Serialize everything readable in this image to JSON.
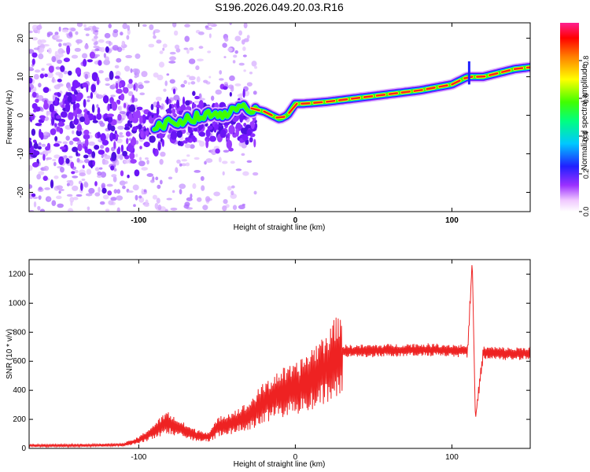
{
  "title": "S196.2026.049.20.03.R16",
  "chart_data": [
    {
      "type": "heatmap",
      "xlabel": "Height of straight line (km)",
      "ylabel": "Frequency (Hz)",
      "xlim": [
        -170,
        150
      ],
      "ylim": [
        -25,
        24
      ],
      "x_ticks": [
        -100,
        0,
        100
      ],
      "y_ticks": [
        -20,
        -10,
        0,
        10,
        20
      ],
      "ridge": {
        "x": [
          -90,
          -70,
          -55,
          -40,
          -30,
          -20,
          -15,
          -10,
          -5,
          0,
          5,
          20,
          40,
          60,
          80,
          100,
          110,
          120,
          140,
          150
        ],
        "y": [
          -3,
          -1,
          0,
          1,
          2,
          1,
          0,
          -1,
          0,
          3,
          3,
          3.5,
          4.5,
          5.5,
          6.5,
          8,
          10,
          10,
          12,
          12.5
        ]
      },
      "spike": {
        "x": 111,
        "y_range": [
          8,
          14
        ]
      },
      "colorbar": {
        "label": "Normalized spectral amplitude",
        "range": [
          0.0,
          1.0
        ],
        "ticks": [
          0.0,
          0.2,
          0.4,
          0.6,
          0.8
        ]
      }
    },
    {
      "type": "line",
      "xlabel": "Height of straight line (km)",
      "ylabel": "SNR (10 * v/v)",
      "xlim": [
        -170,
        150
      ],
      "ylim": [
        0,
        1300
      ],
      "x_ticks": [
        -100,
        0,
        100
      ],
      "y_ticks": [
        0,
        200,
        400,
        600,
        800,
        1000,
        1200
      ],
      "color": "#ee2222",
      "series": [
        {
          "name": "SNR",
          "x": [
            -170,
            -150,
            -125,
            -110,
            -100,
            -90,
            -82,
            -75,
            -65,
            -55,
            -48,
            -40,
            -30,
            -22,
            -10,
            0,
            10,
            20,
            30,
            40,
            60,
            80,
            100,
            110,
            113,
            115,
            120,
            140,
            150
          ],
          "y": [
            20,
            20,
            22,
            25,
            55,
            120,
            180,
            140,
            95,
            80,
            160,
            180,
            220,
            300,
            380,
            400,
            480,
            560,
            670,
            670,
            675,
            680,
            675,
            670,
            1300,
            200,
            660,
            650,
            660
          ]
        }
      ]
    }
  ]
}
